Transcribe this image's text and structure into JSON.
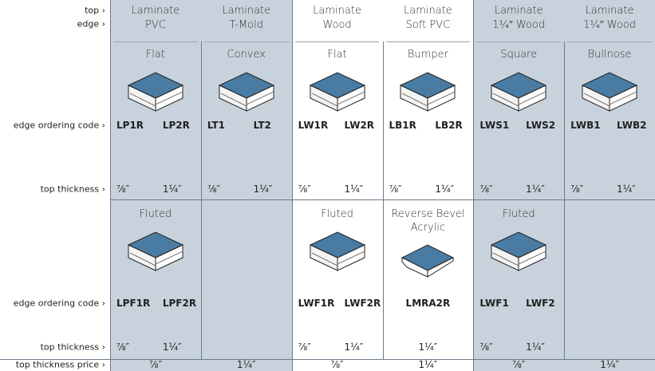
{
  "row_labels": {
    "top": "top ›",
    "edge": "edge ›",
    "code1": "edge ordering code ›",
    "thick1": "top thickness ›",
    "code2": "edge ordering code ›",
    "thick2": "top thickness ›",
    "price": "top thickness price ›"
  },
  "columns": [
    {
      "top": "Laminate",
      "edge": "PVC"
    },
    {
      "top": "Laminate",
      "edge": "T-Mold"
    },
    {
      "top": "Laminate",
      "edge": "Wood"
    },
    {
      "top": "Laminate",
      "edge": "Soft PVC"
    },
    {
      "top": "Laminate",
      "edge": "1¼″ Wood"
    },
    {
      "top": "Laminate",
      "edge": "1¼″ Wood"
    }
  ],
  "section1": [
    {
      "name": "Flat",
      "codes": [
        "LP1R",
        "LP2R"
      ],
      "thicknesses": [
        "⅞″",
        "1¼″"
      ]
    },
    {
      "name": "Convex",
      "codes": [
        "LT1",
        "LT2"
      ],
      "thicknesses": [
        "⅞″",
        "1¼″"
      ]
    },
    {
      "name": "Flat",
      "codes": [
        "LW1R",
        "LW2R"
      ],
      "thicknesses": [
        "⅞″",
        "1¼″"
      ]
    },
    {
      "name": "Bumper",
      "codes": [
        "LB1R",
        "LB2R"
      ],
      "thicknesses": [
        "⅞″",
        "1¼″"
      ]
    },
    {
      "name": "Square",
      "codes": [
        "LWS1",
        "LWS2"
      ],
      "thicknesses": [
        "⅞″",
        "1¼″"
      ]
    },
    {
      "name": "Bullnose",
      "codes": [
        "LWB1",
        "LWB2"
      ],
      "thicknesses": [
        "⅞″",
        "1¼″"
      ]
    }
  ],
  "section2": [
    {
      "name": "Fluted",
      "codes": [
        "LPF1R",
        "LPF2R"
      ],
      "thicknesses": [
        "⅞″",
        "1¼″"
      ]
    },
    null,
    {
      "name": "Fluted",
      "codes": [
        "LWF1R",
        "LWF2R"
      ],
      "thicknesses": [
        "⅞″",
        "1¼″"
      ]
    },
    {
      "name": "Reverse Bevel Acrylic",
      "codes": [
        "LMRA2R"
      ],
      "thicknesses": [
        "1¼″"
      ]
    },
    {
      "name": "Fluted",
      "codes": [
        "LWF1",
        "LWF2"
      ],
      "thicknesses": [
        "⅞″",
        "1¼″"
      ]
    },
    null
  ],
  "prices": [
    "⅞″",
    "1¼″",
    "⅞″",
    "1¼″",
    "⅞″",
    "1¼″"
  ]
}
